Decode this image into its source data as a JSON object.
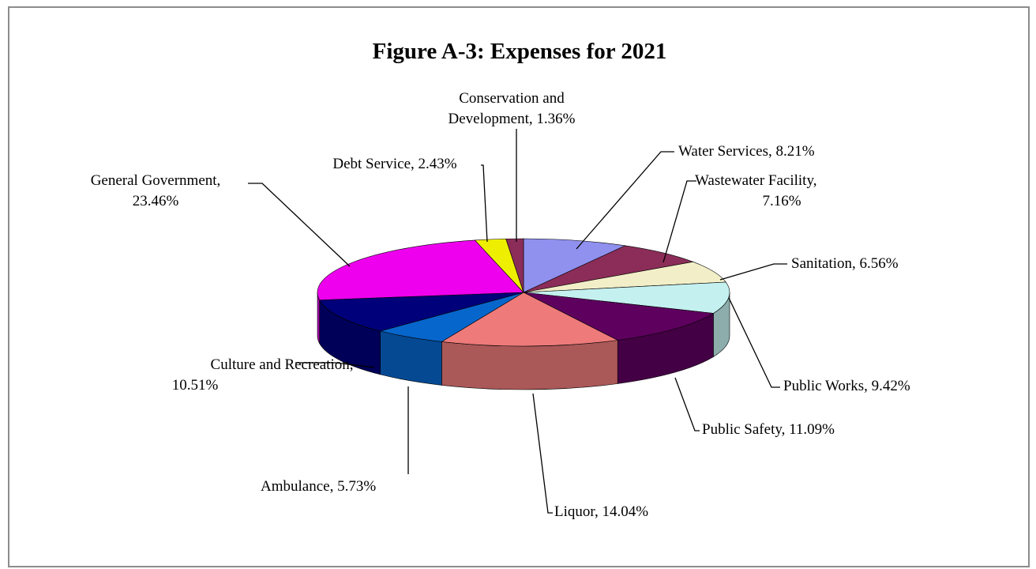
{
  "chart_data": {
    "type": "pie",
    "title": "Figure A-3: Expenses for 2021",
    "slices": [
      {
        "label": "Water Services",
        "value": 8.21,
        "display": "8.21%",
        "color": "#9090ee"
      },
      {
        "label": "Wastewater Facility",
        "value": 7.16,
        "display": "7.16%",
        "color": "#8b2d58"
      },
      {
        "label": "Sanitation",
        "value": 6.56,
        "display": "6.56%",
        "color": "#f2efc8"
      },
      {
        "label": "Public Works",
        "value": 9.42,
        "display": "9.42%",
        "color": "#c4f0f0"
      },
      {
        "label": "Public Safety",
        "value": 11.09,
        "display": "11.09%",
        "color": "#5e005e"
      },
      {
        "label": "Liquor",
        "value": 14.04,
        "display": "14.04%",
        "color": "#ee7a7a"
      },
      {
        "label": "Ambulance",
        "value": 5.73,
        "display": "5.73%",
        "color": "#0766cc"
      },
      {
        "label": "Culture and Recreation",
        "value": 10.51,
        "display": "10.51%",
        "color": "#00007a"
      },
      {
        "label": "General Government",
        "value": 23.46,
        "display": "23.46%",
        "color": "#ee00ee"
      },
      {
        "label": "Debt Service",
        "value": 2.43,
        "display": "2.43%",
        "color": "#eeee00"
      },
      {
        "label": "Conservation and Development",
        "value": 1.36,
        "display": "1.36%",
        "color": "#8b2d58"
      }
    ],
    "legend": "none"
  }
}
